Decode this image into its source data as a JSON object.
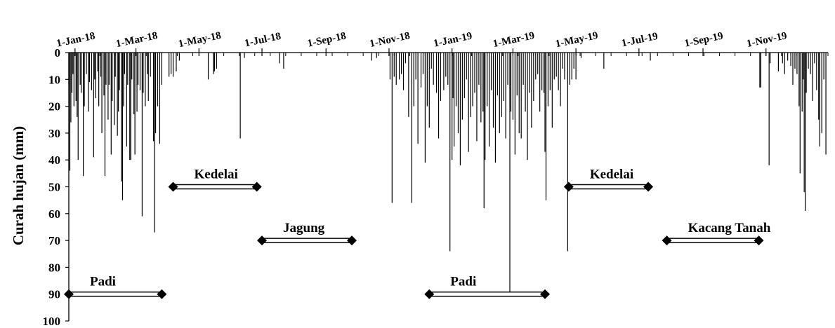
{
  "chart_data": {
    "type": "bar",
    "ylabel": "Curah hujan (mm)",
    "y_inverted": true,
    "ylim": [
      0,
      100
    ],
    "yticks": [
      0,
      10,
      20,
      30,
      40,
      50,
      60,
      70,
      80,
      90,
      100
    ],
    "x_axis_position": "top",
    "xlim": [
      "2017-12-26",
      "2019-12-31"
    ],
    "xticks": [
      "2018-01-01",
      "2018-03-01",
      "2018-05-01",
      "2018-07-01",
      "2018-09-01",
      "2018-11-01",
      "2019-01-01",
      "2019-03-01",
      "2019-05-01",
      "2019-07-01",
      "2019-09-01",
      "2019-11-01"
    ],
    "xtick_labels": [
      "1-Jan-18",
      "1-Mar-18",
      "1-May-18",
      "1-Jul-18",
      "1-Sep-18",
      "1-Nov-18",
      "1-Jan-19",
      "1-Mar-19",
      "1-May-19",
      "1-Jul-19",
      "1-Sep-19",
      "1-Nov-19"
    ],
    "bar_color": "#000000",
    "rainfall": [
      [
        "2017-12-26",
        12
      ],
      [
        "2017-12-27",
        44
      ],
      [
        "2017-12-28",
        26
      ],
      [
        "2017-12-29",
        15
      ],
      [
        "2017-12-30",
        8
      ],
      [
        "2017-12-31",
        20
      ],
      [
        "2018-01-02",
        18
      ],
      [
        "2018-01-03",
        24
      ],
      [
        "2018-01-04",
        40
      ],
      [
        "2018-01-06",
        12
      ],
      [
        "2018-01-07",
        15
      ],
      [
        "2018-01-09",
        46
      ],
      [
        "2018-01-10",
        20
      ],
      [
        "2018-01-12",
        8
      ],
      [
        "2018-01-14",
        22
      ],
      [
        "2018-01-15",
        11
      ],
      [
        "2018-01-17",
        14
      ],
      [
        "2018-01-19",
        39
      ],
      [
        "2018-01-20",
        10
      ],
      [
        "2018-01-21",
        17
      ],
      [
        "2018-01-23",
        7
      ],
      [
        "2018-01-24",
        20
      ],
      [
        "2018-01-26",
        9
      ],
      [
        "2018-01-27",
        30
      ],
      [
        "2018-01-29",
        16
      ],
      [
        "2018-01-30",
        46
      ],
      [
        "2018-01-31",
        12
      ],
      [
        "2018-02-02",
        25
      ],
      [
        "2018-02-03",
        12
      ],
      [
        "2018-02-05",
        38
      ],
      [
        "2018-02-06",
        18
      ],
      [
        "2018-02-08",
        27
      ],
      [
        "2018-02-09",
        9
      ],
      [
        "2018-02-11",
        31
      ],
      [
        "2018-02-12",
        22
      ],
      [
        "2018-02-13",
        14
      ],
      [
        "2018-02-15",
        48
      ],
      [
        "2018-02-16",
        55
      ],
      [
        "2018-02-17",
        20
      ],
      [
        "2018-02-18",
        8
      ],
      [
        "2018-02-20",
        35
      ],
      [
        "2018-02-21",
        12
      ],
      [
        "2018-02-23",
        40
      ],
      [
        "2018-02-24",
        40
      ],
      [
        "2018-02-25",
        10
      ],
      [
        "2018-02-27",
        23
      ],
      [
        "2018-02-28",
        38
      ],
      [
        "2018-03-02",
        22
      ],
      [
        "2018-03-03",
        12
      ],
      [
        "2018-03-05",
        14
      ],
      [
        "2018-03-07",
        61
      ],
      [
        "2018-03-08",
        15
      ],
      [
        "2018-03-10",
        20
      ],
      [
        "2018-03-12",
        8
      ],
      [
        "2018-03-13",
        18
      ],
      [
        "2018-03-15",
        9
      ],
      [
        "2018-03-18",
        33
      ],
      [
        "2018-03-19",
        67
      ],
      [
        "2018-03-20",
        30
      ],
      [
        "2018-03-22",
        20
      ],
      [
        "2018-03-24",
        34
      ],
      [
        "2018-03-26",
        12
      ],
      [
        "2018-04-02",
        9
      ],
      [
        "2018-04-04",
        8
      ],
      [
        "2018-04-06",
        9
      ],
      [
        "2018-04-09",
        7
      ],
      [
        "2018-04-12",
        3
      ],
      [
        "2018-05-10",
        10
      ],
      [
        "2018-05-15",
        8
      ],
      [
        "2018-05-16",
        7
      ],
      [
        "2018-05-18",
        6
      ],
      [
        "2018-06-10",
        32
      ],
      [
        "2018-06-14",
        2
      ],
      [
        "2018-07-18",
        4
      ],
      [
        "2018-07-22",
        6
      ],
      [
        "2018-10-15",
        3
      ],
      [
        "2018-10-20",
        2
      ],
      [
        "2018-11-02",
        10
      ],
      [
        "2018-11-04",
        56
      ],
      [
        "2018-11-06",
        9
      ],
      [
        "2018-11-08",
        12
      ],
      [
        "2018-11-11",
        10
      ],
      [
        "2018-11-13",
        8
      ],
      [
        "2018-11-15",
        14
      ],
      [
        "2018-11-17",
        4
      ],
      [
        "2018-11-20",
        24
      ],
      [
        "2018-11-23",
        56
      ],
      [
        "2018-11-25",
        20
      ],
      [
        "2018-11-27",
        10
      ],
      [
        "2018-11-29",
        34
      ],
      [
        "2018-12-02",
        13
      ],
      [
        "2018-12-04",
        8
      ],
      [
        "2018-12-06",
        41
      ],
      [
        "2018-12-08",
        20
      ],
      [
        "2018-12-10",
        28
      ],
      [
        "2018-12-12",
        6
      ],
      [
        "2018-12-14",
        12
      ],
      [
        "2018-12-17",
        15
      ],
      [
        "2018-12-19",
        32
      ],
      [
        "2018-12-21",
        18
      ],
      [
        "2018-12-24",
        14
      ],
      [
        "2018-12-26",
        9
      ],
      [
        "2018-12-28",
        12
      ],
      [
        "2018-12-30",
        74
      ],
      [
        "2019-01-01",
        40
      ],
      [
        "2019-01-02",
        17
      ],
      [
        "2019-01-03",
        35
      ],
      [
        "2019-01-05",
        20
      ],
      [
        "2019-01-07",
        30
      ],
      [
        "2019-01-09",
        42
      ],
      [
        "2019-01-11",
        25
      ],
      [
        "2019-01-13",
        17
      ],
      [
        "2019-01-15",
        10
      ],
      [
        "2019-01-17",
        37
      ],
      [
        "2019-01-19",
        24
      ],
      [
        "2019-01-21",
        20
      ],
      [
        "2019-01-23",
        15
      ],
      [
        "2019-01-25",
        33
      ],
      [
        "2019-01-27",
        12
      ],
      [
        "2019-01-29",
        26
      ],
      [
        "2019-01-31",
        22
      ],
      [
        "2019-02-01",
        58
      ],
      [
        "2019-02-02",
        40
      ],
      [
        "2019-02-04",
        20
      ],
      [
        "2019-02-06",
        35
      ],
      [
        "2019-02-08",
        14
      ],
      [
        "2019-02-10",
        28
      ],
      [
        "2019-02-12",
        41
      ],
      [
        "2019-02-14",
        16
      ],
      [
        "2019-02-16",
        30
      ],
      [
        "2019-02-18",
        24
      ],
      [
        "2019-02-20",
        18
      ],
      [
        "2019-02-22",
        32
      ],
      [
        "2019-02-24",
        12
      ],
      [
        "2019-02-26",
        90
      ],
      [
        "2019-02-27",
        22
      ],
      [
        "2019-03-01",
        25
      ],
      [
        "2019-03-03",
        38
      ],
      [
        "2019-03-05",
        16
      ],
      [
        "2019-03-07",
        30
      ],
      [
        "2019-03-09",
        32
      ],
      [
        "2019-03-11",
        12
      ],
      [
        "2019-03-13",
        22
      ],
      [
        "2019-03-15",
        40
      ],
      [
        "2019-03-17",
        15
      ],
      [
        "2019-03-19",
        28
      ],
      [
        "2019-03-21",
        18
      ],
      [
        "2019-03-23",
        10
      ],
      [
        "2019-03-25",
        8
      ],
      [
        "2019-03-27",
        22
      ],
      [
        "2019-03-29",
        14
      ],
      [
        "2019-03-31",
        15
      ],
      [
        "2019-04-01",
        37
      ],
      [
        "2019-04-02",
        55
      ],
      [
        "2019-04-04",
        20
      ],
      [
        "2019-04-06",
        14
      ],
      [
        "2019-04-08",
        28
      ],
      [
        "2019-04-10",
        10
      ],
      [
        "2019-04-12",
        9
      ],
      [
        "2019-04-14",
        14
      ],
      [
        "2019-04-16",
        20
      ],
      [
        "2019-04-18",
        6
      ],
      [
        "2019-04-20",
        10
      ],
      [
        "2019-04-23",
        74
      ],
      [
        "2019-04-25",
        12
      ],
      [
        "2019-04-27",
        10
      ],
      [
        "2019-04-29",
        6
      ],
      [
        "2019-05-01",
        10
      ],
      [
        "2019-05-06",
        2
      ],
      [
        "2019-05-28",
        6
      ],
      [
        "2019-07-12",
        3
      ],
      [
        "2019-10-26",
        13
      ],
      [
        "2019-10-27",
        13
      ],
      [
        "2019-11-04",
        42
      ],
      [
        "2019-11-05",
        4
      ],
      [
        "2019-11-13",
        7
      ],
      [
        "2019-11-17",
        4
      ],
      [
        "2019-11-19",
        8
      ],
      [
        "2019-11-22",
        3
      ],
      [
        "2019-11-25",
        5
      ],
      [
        "2019-11-27",
        12
      ],
      [
        "2019-11-29",
        6
      ],
      [
        "2019-12-01",
        8
      ],
      [
        "2019-12-03",
        20
      ],
      [
        "2019-12-04",
        45
      ],
      [
        "2019-12-06",
        22
      ],
      [
        "2019-12-07",
        10
      ],
      [
        "2019-12-08",
        52
      ],
      [
        "2019-12-09",
        59
      ],
      [
        "2019-12-10",
        15
      ],
      [
        "2019-12-12",
        6
      ],
      [
        "2019-12-14",
        8
      ],
      [
        "2019-12-16",
        18
      ],
      [
        "2019-12-18",
        4
      ],
      [
        "2019-12-20",
        14
      ],
      [
        "2019-12-22",
        25
      ],
      [
        "2019-12-23",
        35
      ],
      [
        "2019-12-25",
        30
      ],
      [
        "2019-12-27",
        10
      ],
      [
        "2019-12-29",
        38
      ]
    ],
    "seasons": [
      {
        "label": "Padi",
        "start": "2017-12-26",
        "end": "2018-03-26",
        "y": 90
      },
      {
        "label": "Kedelai",
        "start": "2018-04-06",
        "end": "2018-06-26",
        "y": 50
      },
      {
        "label": "Jagung",
        "start": "2018-07-01",
        "end": "2018-09-26",
        "y": 70
      },
      {
        "label": "Padi",
        "start": "2018-12-10",
        "end": "2019-04-01",
        "y": 90
      },
      {
        "label": "Kedelai",
        "start": "2019-04-24",
        "end": "2019-07-10",
        "y": 50
      },
      {
        "label": "Kacang Tanah",
        "start": "2019-07-28",
        "end": "2019-10-25",
        "y": 70
      }
    ]
  }
}
